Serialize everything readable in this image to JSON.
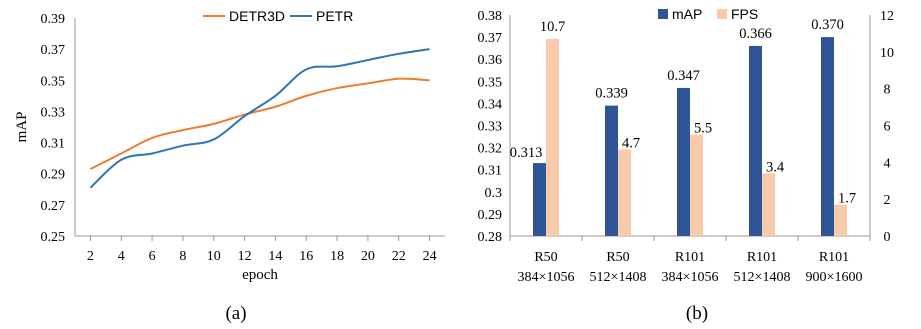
{
  "chart_data": [
    {
      "type": "line",
      "title": "",
      "xlabel": "epoch",
      "ylabel": "mAP",
      "x": [
        2,
        4,
        6,
        8,
        10,
        12,
        14,
        16,
        18,
        20,
        22,
        24
      ],
      "xticks": [
        "2",
        "4",
        "6",
        "8",
        "10",
        "12",
        "14",
        "16",
        "18",
        "20",
        "22",
        "24"
      ],
      "ylim": [
        0.25,
        0.39
      ],
      "yticks": [
        "0.25",
        "0.27",
        "0.29",
        "0.31",
        "0.33",
        "0.35",
        "0.37",
        "0.39"
      ],
      "legend_position": "top",
      "series": [
        {
          "name": "DETR3D",
          "color": "#ED7D31",
          "values": [
            0.293,
            0.303,
            0.313,
            0.318,
            0.322,
            0.328,
            0.333,
            0.34,
            0.345,
            0.348,
            0.351,
            0.35
          ]
        },
        {
          "name": "PETR",
          "color": "#2E75B6",
          "values": [
            0.281,
            0.299,
            0.303,
            0.308,
            0.312,
            0.327,
            0.34,
            0.357,
            0.359,
            0.363,
            0.367,
            0.37
          ]
        }
      ],
      "caption": "(a)"
    },
    {
      "type": "bar",
      "title": "",
      "categories": [
        [
          "R50",
          "384×1056"
        ],
        [
          "R50",
          "512×1408"
        ],
        [
          "R101",
          "384×1056"
        ],
        [
          "R101",
          "512×1408"
        ],
        [
          "R101",
          "900×1600"
        ]
      ],
      "ylim_left": [
        0.28,
        0.38
      ],
      "yticks_left": [
        "0.28",
        "0.29",
        "0.3",
        "0.31",
        "0.32",
        "0.33",
        "0.34",
        "0.35",
        "0.36",
        "0.37",
        "0.38"
      ],
      "ylim_right": [
        0,
        12
      ],
      "yticks_right": [
        "0",
        "2",
        "4",
        "6",
        "8",
        "10",
        "12"
      ],
      "legend_position": "top",
      "series": [
        {
          "name": "mAP",
          "axis": "left",
          "color": "#2F5597",
          "values": [
            0.313,
            0.339,
            0.347,
            0.366,
            0.37
          ],
          "labels": [
            "0.313",
            "0.339",
            "0.347",
            "0.366",
            "0.370"
          ]
        },
        {
          "name": "FPS",
          "axis": "right",
          "color": "#F8CBAD",
          "values": [
            10.7,
            4.7,
            5.5,
            3.4,
            1.7
          ],
          "labels": [
            "10.7",
            "4.7",
            "5.5",
            "3.4",
            "1.7"
          ]
        }
      ],
      "caption": "(b)"
    }
  ]
}
